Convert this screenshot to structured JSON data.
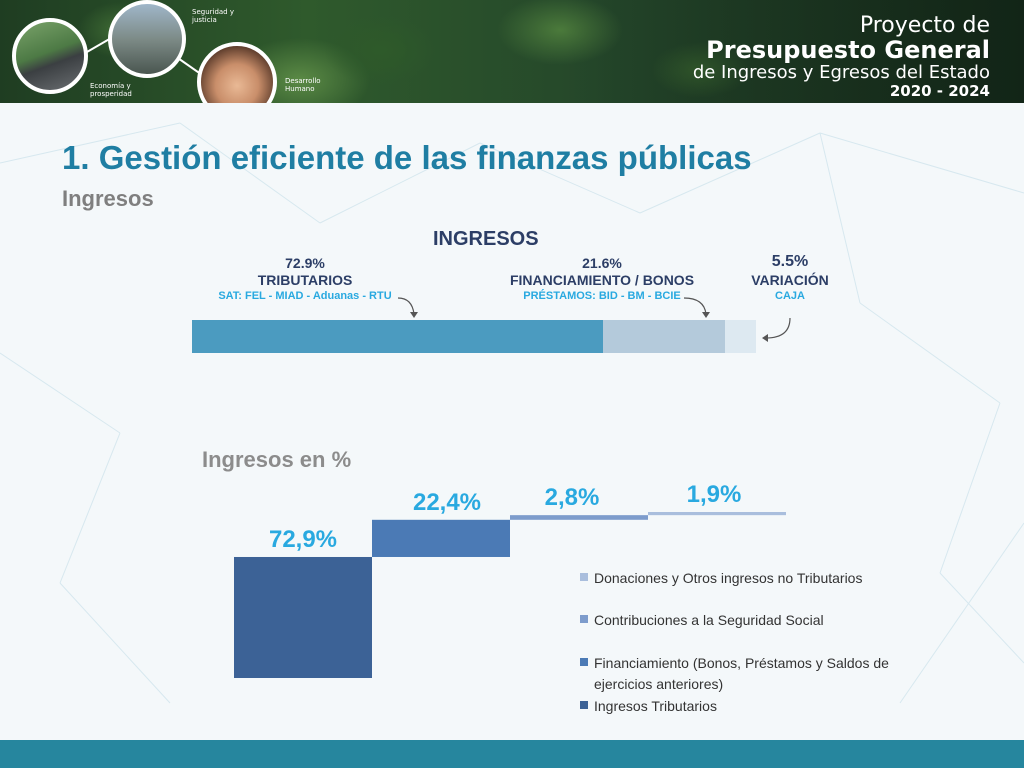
{
  "header": {
    "captions": {
      "seguridad": "Seguridad y justicia",
      "economia": "Economía y prosperidad",
      "desarrollo": "Desarrollo Humano"
    },
    "brand": {
      "line1": "Proyecto de",
      "line2": "Presupuesto General",
      "line3": "de Ingresos y Egresos del Estado",
      "line4": "2020 - 2024"
    }
  },
  "slide": {
    "title": "1.  Gestión eficiente de las finanzas públicas",
    "subtitle": "Ingresos"
  },
  "colors": {
    "title": "#1f7ea3",
    "navy": "#2c3e66",
    "accent_blue": "#29a9e0",
    "footer": "#26869e"
  },
  "chart_data": [
    {
      "type": "bar",
      "title": "INGRESOS",
      "stacked": true,
      "orientation": "horizontal",
      "segments": [
        {
          "pct_label": "72.9%",
          "name": "TRIBUTARIOS",
          "desc": "SAT:  FEL - MIAD - Aduanas - RTU",
          "value": 72.9,
          "color": "#4b9bc0"
        },
        {
          "pct_label": "21.6%",
          "name": "FINANCIAMIENTO / BONOS",
          "desc": "PRÉSTAMOS:  BID - BM - BCIE",
          "value": 21.6,
          "color": "#b4cadb"
        },
        {
          "pct_label": "5.5%",
          "name": "VARIACIÓN",
          "desc": "CAJA",
          "value": 5.5,
          "color": "#dde9f1"
        }
      ]
    },
    {
      "type": "bar",
      "subtype": "waterfall",
      "title": "Ingresos en %",
      "value_labels": [
        "72,9%",
        "22,4%",
        "2,8%",
        "1,9%"
      ],
      "values": [
        72.9,
        22.4,
        2.8,
        1.9
      ],
      "colors": [
        "#3c6296",
        "#4b7ab5",
        "#7d9ccc",
        "#a9bedd"
      ],
      "legend": [
        {
          "label": "Donaciones y Otros ingresos no Tributarios",
          "color": "#a9bedd"
        },
        {
          "label": "Contribuciones a la Seguridad Social",
          "color": "#7d9ccc"
        },
        {
          "label": "Financiamiento (Bonos, Préstamos y Saldos de ejercicios anteriores)",
          "color": "#4b7ab5"
        },
        {
          "label": "Ingresos Tributarios",
          "color": "#3c6296"
        }
      ],
      "legend_position": "right"
    }
  ]
}
